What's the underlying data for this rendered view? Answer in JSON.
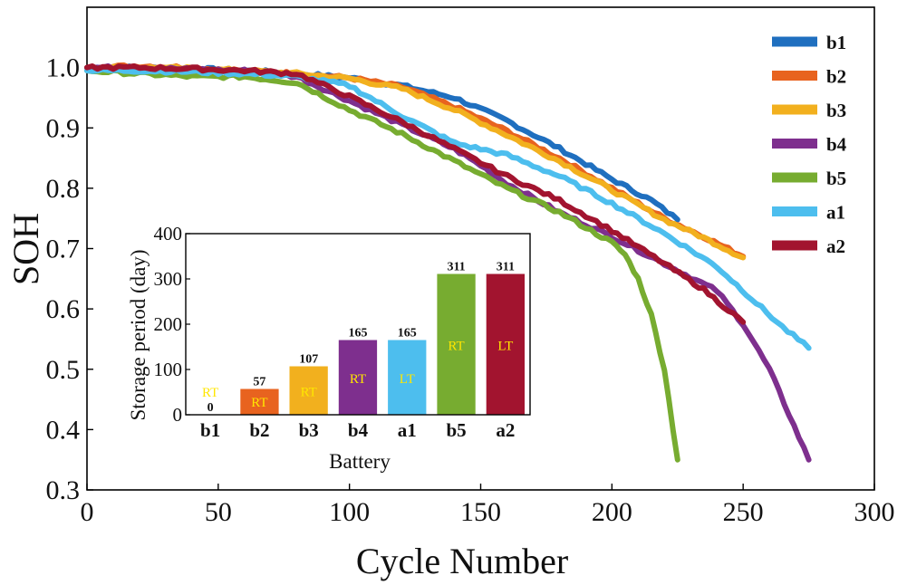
{
  "chart_data": [
    {
      "type": "line",
      "title": "",
      "xlabel": "Cycle Number",
      "ylabel": "SOH",
      "xlim": [
        0,
        300
      ],
      "ylim": [
        0.3,
        1.1
      ],
      "xticks": [
        "0",
        "50",
        "100",
        "150",
        "200",
        "250",
        "300"
      ],
      "yticks": [
        "0.3",
        "0.4",
        "0.5",
        "0.6",
        "0.7",
        "0.8",
        "0.9",
        "1.0"
      ],
      "legend_position": "top-right",
      "series": [
        {
          "name": "b1",
          "color": "#1f6fbf",
          "x": [
            0,
            20,
            40,
            60,
            80,
            100,
            120,
            140,
            160,
            180,
            200,
            215,
            225
          ],
          "y": [
            1.0,
            1.0,
            0.998,
            0.995,
            0.99,
            0.983,
            0.97,
            0.95,
            0.912,
            0.866,
            0.815,
            0.78,
            0.748
          ]
        },
        {
          "name": "b2",
          "color": "#e8631f",
          "x": [
            0,
            20,
            40,
            60,
            80,
            100,
            120,
            140,
            160,
            180,
            200,
            220,
            235,
            250
          ],
          "y": [
            1.0,
            1.003,
            1.0,
            0.995,
            0.99,
            0.983,
            0.968,
            0.935,
            0.895,
            0.85,
            0.8,
            0.75,
            0.72,
            0.687
          ]
        },
        {
          "name": "b3",
          "color": "#f2b01e",
          "x": [
            0,
            20,
            40,
            60,
            80,
            100,
            120,
            140,
            160,
            180,
            200,
            220,
            235,
            250
          ],
          "y": [
            1.0,
            1.0,
            0.998,
            0.995,
            0.99,
            0.982,
            0.965,
            0.93,
            0.888,
            0.845,
            0.797,
            0.748,
            0.718,
            0.685
          ]
        },
        {
          "name": "b4",
          "color": "#7e2f8e",
          "x": [
            0,
            20,
            40,
            60,
            80,
            100,
            120,
            140,
            150,
            160,
            180,
            200,
            220,
            240,
            250,
            260,
            275
          ],
          "y": [
            1.0,
            1.0,
            0.997,
            0.995,
            0.985,
            0.945,
            0.905,
            0.865,
            0.838,
            0.808,
            0.76,
            0.72,
            0.675,
            0.63,
            0.575,
            0.5,
            0.35
          ]
        },
        {
          "name": "b5",
          "color": "#77ac30",
          "x": [
            0,
            20,
            40,
            60,
            80,
            100,
            120,
            140,
            160,
            180,
            200,
            205,
            210,
            215,
            220,
            225
          ],
          "y": [
            0.995,
            0.99,
            0.985,
            0.985,
            0.975,
            0.93,
            0.89,
            0.845,
            0.8,
            0.76,
            0.71,
            0.69,
            0.65,
            0.59,
            0.5,
            0.35
          ]
        },
        {
          "name": "a1",
          "color": "#4dbeee",
          "x": [
            0,
            20,
            40,
            60,
            80,
            100,
            120,
            140,
            160,
            180,
            200,
            220,
            240,
            255,
            265,
            275
          ],
          "y": [
            0.995,
            0.995,
            0.993,
            0.99,
            0.985,
            0.97,
            0.92,
            0.875,
            0.855,
            0.82,
            0.775,
            0.725,
            0.67,
            0.61,
            0.57,
            0.535
          ]
        },
        {
          "name": "a2",
          "color": "#a2142f",
          "x": [
            0,
            20,
            40,
            60,
            80,
            100,
            120,
            140,
            160,
            180,
            200,
            220,
            235,
            250
          ],
          "y": [
            1.0,
            1.0,
            0.998,
            0.995,
            0.99,
            0.952,
            0.91,
            0.865,
            0.82,
            0.78,
            0.73,
            0.675,
            0.632,
            0.578
          ]
        }
      ]
    },
    {
      "type": "bar",
      "title": "",
      "xlabel": "Battery",
      "ylabel": "Storage period (day)",
      "ylim": [
        0,
        400
      ],
      "yticks": [
        "0",
        "100",
        "200",
        "300",
        "400"
      ],
      "categories": [
        "b1",
        "b2",
        "b3",
        "b4",
        "a1",
        "b5",
        "a2"
      ],
      "values": [
        0,
        57,
        107,
        165,
        165,
        311,
        311
      ],
      "value_labels": [
        "0",
        "57",
        "107",
        "165",
        "165",
        "311",
        "311"
      ],
      "bar_tags": [
        "RT",
        "RT",
        "RT",
        "RT",
        "LT",
        "RT",
        "LT"
      ],
      "colors": [
        "#1f6fbf",
        "#e8631f",
        "#f2b01e",
        "#7e2f8e",
        "#4dbeee",
        "#77ac30",
        "#a2142f"
      ],
      "tag_color": "#ffe600"
    }
  ]
}
